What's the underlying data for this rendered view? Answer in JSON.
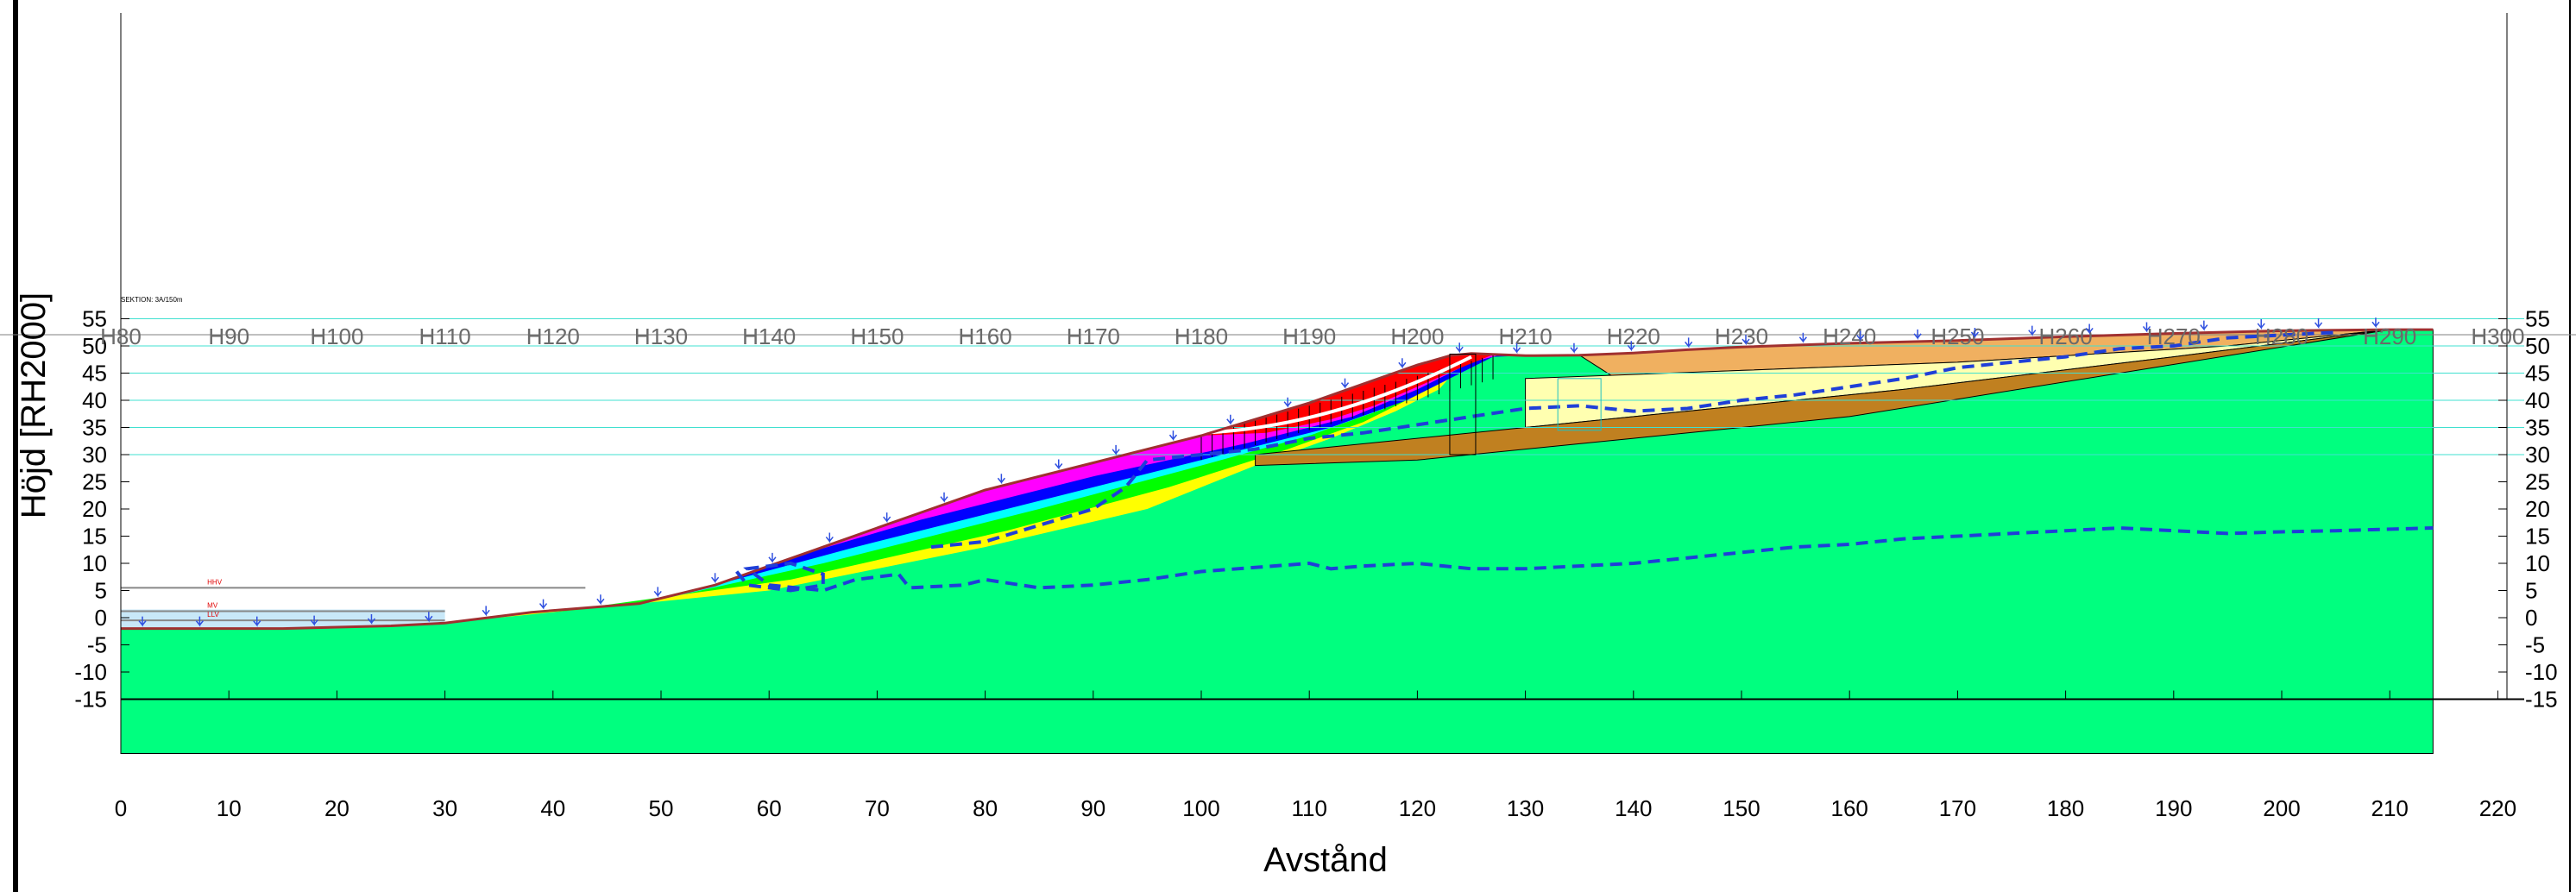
{
  "chart_data": {
    "type": "cross-section",
    "xlabel": "Avstånd",
    "ylabel": "Höjd [RH2000]",
    "xlim": [
      0,
      220
    ],
    "ylim": [
      -15,
      55
    ],
    "x_ticks": [
      0,
      10,
      20,
      30,
      40,
      50,
      60,
      70,
      80,
      90,
      100,
      110,
      120,
      130,
      140,
      150,
      160,
      170,
      180,
      190,
      200,
      210,
      220
    ],
    "y_ticks": [
      -15,
      -10,
      -5,
      0,
      5,
      10,
      15,
      20,
      25,
      30,
      35,
      40,
      45,
      50,
      55
    ],
    "section_labels": [
      "H80",
      "H90",
      "H100",
      "H110",
      "H120",
      "H130",
      "H140",
      "H150",
      "H160",
      "H170",
      "H180",
      "H190",
      "H200",
      "H210",
      "H220",
      "H230",
      "H240",
      "H250",
      "H260",
      "H270",
      "H280",
      "H290",
      "H300"
    ],
    "section_label_text": "SEKTION: 3A/150m",
    "water_labels": [
      "HHV",
      "MV",
      "LLV"
    ],
    "water_levels": [
      {
        "label": "HHV",
        "y": 5.5
      },
      {
        "label": "MV",
        "y": 1.2
      },
      {
        "label": "LLV",
        "y": -0.5
      }
    ],
    "ground_surface": [
      [
        0,
        -2
      ],
      [
        15,
        -2
      ],
      [
        25,
        -1.5
      ],
      [
        30,
        -1
      ],
      [
        38,
        1
      ],
      [
        48,
        2.6
      ],
      [
        55,
        6
      ],
      [
        60,
        9.5
      ],
      [
        65,
        13
      ],
      [
        70,
        16.5
      ],
      [
        75,
        20
      ],
      [
        80,
        23.5
      ],
      [
        85,
        26
      ],
      [
        90,
        28.5
      ],
      [
        95,
        31
      ],
      [
        100,
        33.5
      ],
      [
        105,
        36.5
      ],
      [
        110,
        39.5
      ],
      [
        115,
        43
      ],
      [
        120,
        46.5
      ],
      [
        123,
        48.2
      ],
      [
        125,
        48.6
      ],
      [
        130,
        48.2
      ],
      [
        135,
        48.3
      ],
      [
        140,
        48.7
      ],
      [
        145,
        49.3
      ],
      [
        150,
        49.8
      ],
      [
        160,
        50.5
      ],
      [
        170,
        51
      ],
      [
        180,
        51.7
      ],
      [
        190,
        52.3
      ],
      [
        200,
        52.8
      ],
      [
        210,
        53
      ],
      [
        214,
        53
      ]
    ],
    "groundwater_upper": [
      [
        57,
        8.5
      ],
      [
        58,
        6
      ],
      [
        62,
        5
      ],
      [
        65,
        6
      ],
      [
        65,
        8
      ],
      [
        62,
        10
      ],
      [
        58,
        9
      ],
      [
        60,
        6
      ],
      [
        65,
        5
      ],
      [
        68,
        7
      ],
      [
        72,
        8
      ],
      [
        73,
        5.5
      ],
      [
        78,
        6
      ],
      [
        80,
        7
      ],
      [
        85,
        5.5
      ],
      [
        90,
        6
      ],
      [
        95,
        7
      ],
      [
        100,
        8.5
      ],
      [
        110,
        10
      ],
      [
        112,
        9
      ],
      [
        115,
        9.5
      ],
      [
        120,
        10
      ],
      [
        125,
        9
      ],
      [
        130,
        9
      ],
      [
        135,
        9.5
      ],
      [
        140,
        10
      ],
      [
        145,
        11
      ],
      [
        150,
        12
      ],
      [
        155,
        13
      ],
      [
        160,
        13.5
      ],
      [
        165,
        14.5
      ],
      [
        170,
        15
      ],
      [
        175,
        15.5
      ],
      [
        180,
        16
      ],
      [
        185,
        16.5
      ],
      [
        190,
        16
      ],
      [
        195,
        15.5
      ],
      [
        200,
        15.8
      ],
      [
        205,
        16
      ],
      [
        214,
        16.5
      ]
    ],
    "groundwater_lower": [
      [
        75,
        13
      ],
      [
        80,
        14
      ],
      [
        85,
        17
      ],
      [
        90,
        20
      ],
      [
        93,
        24
      ],
      [
        95,
        29
      ],
      [
        100,
        30
      ],
      [
        105,
        31
      ],
      [
        110,
        33
      ],
      [
        115,
        34
      ],
      [
        120,
        35.5
      ],
      [
        125,
        37
      ],
      [
        130,
        38.5
      ],
      [
        135,
        39
      ],
      [
        140,
        38
      ],
      [
        145,
        38.5
      ],
      [
        150,
        40
      ],
      [
        155,
        41
      ],
      [
        160,
        42.5
      ],
      [
        165,
        44
      ],
      [
        170,
        46
      ],
      [
        175,
        47
      ],
      [
        180,
        48
      ],
      [
        185,
        49.5
      ],
      [
        190,
        50
      ],
      [
        195,
        51.5
      ],
      [
        200,
        52
      ],
      [
        205,
        52.5
      ]
    ],
    "legend_colors": {
      "base_soil": "#00ff7f",
      "yellow_layer": "#ffff00",
      "green_layer": "#00ff00",
      "cyan_layer": "#00ffff",
      "blue_layer": "#0000ff",
      "magenta_layer": "#ff00ff",
      "red_layer": "#ff0000",
      "light_yellow_layer": "#ffffb0",
      "tan_layer": "#f0b060",
      "brown_layer": "#c08020",
      "water": "#c8e8f8",
      "gridline": "#40e0d0",
      "groundwater_line": "#1f3fd8"
    }
  }
}
